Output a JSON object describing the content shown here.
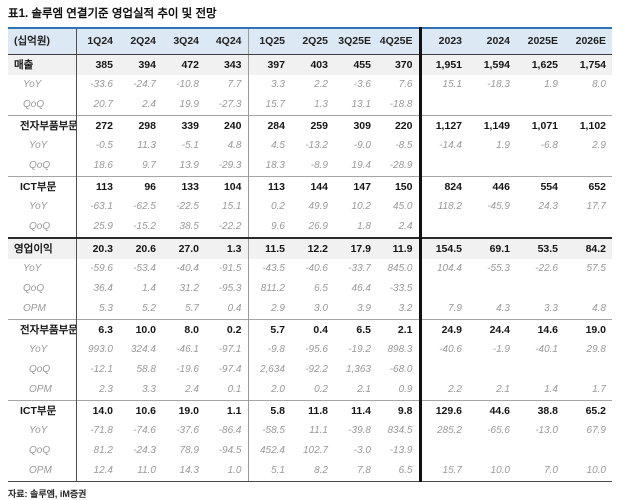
{
  "title": "표1. 솔루엠 연결기준 영업실적 추이 및 전망",
  "footer": "자료: 솔루엠, iM증권",
  "colors": {
    "accent_blue": "#2e74b5",
    "header_bg": "#dce8f4",
    "highlight_row_bg": "#f1f1f1",
    "sub_row_text": "#999999"
  },
  "table": {
    "unit_label": "(십억원)",
    "columns": [
      "1Q24",
      "2Q24",
      "3Q24",
      "4Q24",
      "1Q25",
      "2Q25",
      "3Q25E",
      "4Q25E",
      "2023",
      "2024",
      "2025E",
      "2026E"
    ],
    "rows": [
      {
        "label": "매출",
        "style": "section",
        "indent": 0,
        "highlight": true,
        "sep": "none",
        "values": [
          "385",
          "394",
          "472",
          "343",
          "397",
          "403",
          "455",
          "370",
          "1,951",
          "1,594",
          "1,625",
          "1,754"
        ]
      },
      {
        "label": "YoY",
        "style": "sub",
        "indent": 1,
        "highlight": false,
        "sep": "none",
        "values": [
          "-33.6",
          "-24.7",
          "-10.8",
          "7.7",
          "3.3",
          "2.2",
          "-3.6",
          "7.6",
          "15.1",
          "-18.3",
          "1.9",
          "8.0"
        ]
      },
      {
        "label": "QoQ",
        "style": "sub",
        "indent": 1,
        "highlight": false,
        "sep": "none",
        "values": [
          "20.7",
          "2.4",
          "19.9",
          "-27.3",
          "15.7",
          "1.3",
          "13.1",
          "-18.8",
          "",
          "",
          "",
          ""
        ]
      },
      {
        "label": "전자부품부문",
        "style": "section",
        "indent": 1,
        "highlight": false,
        "sep": "thin",
        "values": [
          "272",
          "298",
          "339",
          "240",
          "284",
          "259",
          "309",
          "220",
          "1,127",
          "1,149",
          "1,071",
          "1,102"
        ]
      },
      {
        "label": "YoY",
        "style": "sub",
        "indent": 2,
        "highlight": false,
        "sep": "none",
        "values": [
          "-0.5",
          "11.3",
          "-5.1",
          "4.8",
          "4.5",
          "-13.2",
          "-9.0",
          "-8.5",
          "-14.4",
          "1.9",
          "-6.8",
          "2.9"
        ]
      },
      {
        "label": "QoQ",
        "style": "sub",
        "indent": 2,
        "highlight": false,
        "sep": "none",
        "values": [
          "18.6",
          "9.7",
          "13.9",
          "-29.3",
          "18.3",
          "-8.9",
          "19.4",
          "-28.9",
          "",
          "",
          "",
          ""
        ]
      },
      {
        "label": "ICT부문",
        "style": "section",
        "indent": 1,
        "highlight": false,
        "sep": "thin",
        "values": [
          "113",
          "96",
          "133",
          "104",
          "113",
          "144",
          "147",
          "150",
          "824",
          "446",
          "554",
          "652"
        ]
      },
      {
        "label": "YoY",
        "style": "sub",
        "indent": 2,
        "highlight": false,
        "sep": "none",
        "values": [
          "-63.1",
          "-62.5",
          "-22.5",
          "15.1",
          "0.2",
          "49.9",
          "10.2",
          "45.0",
          "118.2",
          "-45.9",
          "24.3",
          "17.7"
        ]
      },
      {
        "label": "QoQ",
        "style": "sub",
        "indent": 2,
        "highlight": false,
        "sep": "none",
        "values": [
          "25.9",
          "-15.2",
          "38.5",
          "-22.2",
          "9.6",
          "26.9",
          "1.8",
          "2.4",
          "",
          "",
          "",
          ""
        ]
      },
      {
        "label": "영업이익",
        "style": "section",
        "indent": 0,
        "highlight": true,
        "sep": "thick",
        "values": [
          "20.3",
          "20.6",
          "27.0",
          "1.3",
          "11.5",
          "12.2",
          "17.9",
          "11.9",
          "154.5",
          "69.1",
          "53.5",
          "84.2"
        ]
      },
      {
        "label": "YoY",
        "style": "sub",
        "indent": 1,
        "highlight": false,
        "sep": "none",
        "values": [
          "-59.6",
          "-53.4",
          "-40.4",
          "-91.5",
          "-43.5",
          "-40.6",
          "-33.7",
          "845.0",
          "104.4",
          "-55.3",
          "-22.6",
          "57.5"
        ]
      },
      {
        "label": "QoQ",
        "style": "sub",
        "indent": 1,
        "highlight": false,
        "sep": "none",
        "values": [
          "36.4",
          "1.4",
          "31.2",
          "-95.3",
          "811.2",
          "6.5",
          "46.4",
          "-33.5",
          "",
          "",
          "",
          ""
        ]
      },
      {
        "label": "OPM",
        "style": "sub",
        "indent": 1,
        "highlight": false,
        "sep": "none",
        "values": [
          "5.3",
          "5.2",
          "5.7",
          "0.4",
          "2.9",
          "3.0",
          "3.9",
          "3.2",
          "7.9",
          "4.3",
          "3.3",
          "4.8"
        ]
      },
      {
        "label": "전자부품부문",
        "style": "section",
        "indent": 1,
        "highlight": false,
        "sep": "thin",
        "values": [
          "6.3",
          "10.0",
          "8.0",
          "0.2",
          "5.7",
          "0.4",
          "6.5",
          "2.1",
          "24.9",
          "24.4",
          "14.6",
          "19.0"
        ]
      },
      {
        "label": "YoY",
        "style": "sub",
        "indent": 2,
        "highlight": false,
        "sep": "none",
        "values": [
          "993.0",
          "324.4",
          "-46.1",
          "-97.1",
          "-9.8",
          "-95.6",
          "-19.2",
          "898.3",
          "-40.6",
          "-1.9",
          "-40.1",
          "29.8"
        ]
      },
      {
        "label": "QoQ",
        "style": "sub",
        "indent": 2,
        "highlight": false,
        "sep": "none",
        "values": [
          "-12.1",
          "58.8",
          "-19.6",
          "-97.4",
          "2,634",
          "-92.2",
          "1,363",
          "-68.0",
          "",
          "",
          "",
          ""
        ]
      },
      {
        "label": "OPM",
        "style": "sub",
        "indent": 2,
        "highlight": false,
        "sep": "none",
        "values": [
          "2.3",
          "3.3",
          "2.4",
          "0.1",
          "2.0",
          "0.2",
          "2.1",
          "0.9",
          "2.2",
          "2.1",
          "1.4",
          "1.7"
        ]
      },
      {
        "label": "ICT부문",
        "style": "section",
        "indent": 1,
        "highlight": false,
        "sep": "thin",
        "values": [
          "14.0",
          "10.6",
          "19.0",
          "1.1",
          "5.8",
          "11.8",
          "11.4",
          "9.8",
          "129.6",
          "44.6",
          "38.8",
          "65.2"
        ]
      },
      {
        "label": "YoY",
        "style": "sub",
        "indent": 2,
        "highlight": false,
        "sep": "none",
        "values": [
          "-71.8",
          "-74.6",
          "-37.6",
          "-86.4",
          "-58.5",
          "11.1",
          "-39.8",
          "834.5",
          "285.2",
          "-65.6",
          "-13.0",
          "67.9"
        ]
      },
      {
        "label": "QoQ",
        "style": "sub",
        "indent": 2,
        "highlight": false,
        "sep": "none",
        "values": [
          "81.2",
          "-24.3",
          "78.9",
          "-94.5",
          "452.4",
          "102.7",
          "-3.0",
          "-13.9",
          "",
          "",
          "",
          ""
        ]
      },
      {
        "label": "OPM",
        "style": "sub",
        "indent": 2,
        "highlight": false,
        "sep": "none",
        "values": [
          "12.4",
          "11.0",
          "14.3",
          "1.0",
          "5.1",
          "8.2",
          "7.8",
          "6.5",
          "15.7",
          "10.0",
          "7.0",
          "10.0"
        ]
      }
    ]
  }
}
